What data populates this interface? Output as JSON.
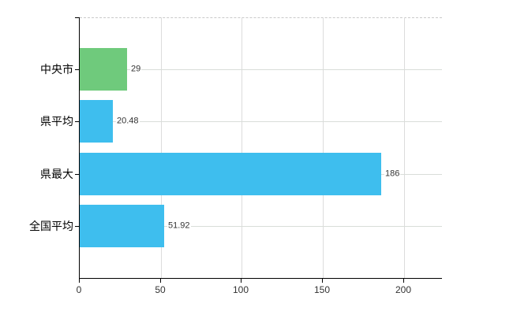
{
  "chart_data": {
    "type": "bar",
    "orientation": "horizontal",
    "title": "",
    "categories": [
      "中央市",
      "県平均",
      "県最大",
      "全国平均"
    ],
    "values": [
      29,
      20.48,
      186,
      51.92
    ],
    "value_labels": [
      "29",
      "20.48",
      "186",
      "51.92"
    ],
    "series_colors": [
      "#6fca7c",
      "#3ebeee",
      "#3ebeee",
      "#3ebeee"
    ],
    "x_ticks": [
      0,
      50,
      100,
      150,
      200
    ],
    "x_tick_labels": [
      "0",
      "50",
      "100",
      "150",
      "200"
    ],
    "xlim": [
      0,
      223.6
    ],
    "grid": true,
    "legend": false,
    "colors": {
      "highlight_bar": "#6fca7c",
      "default_bar": "#3ebeee",
      "gridline": "#dcdcdc",
      "axis": "#000000",
      "plot_top_border": "#c9c9c9",
      "value_text": "#333333",
      "tick_text": "#333333",
      "category_text": "#000000",
      "background": "#ffffff"
    }
  }
}
